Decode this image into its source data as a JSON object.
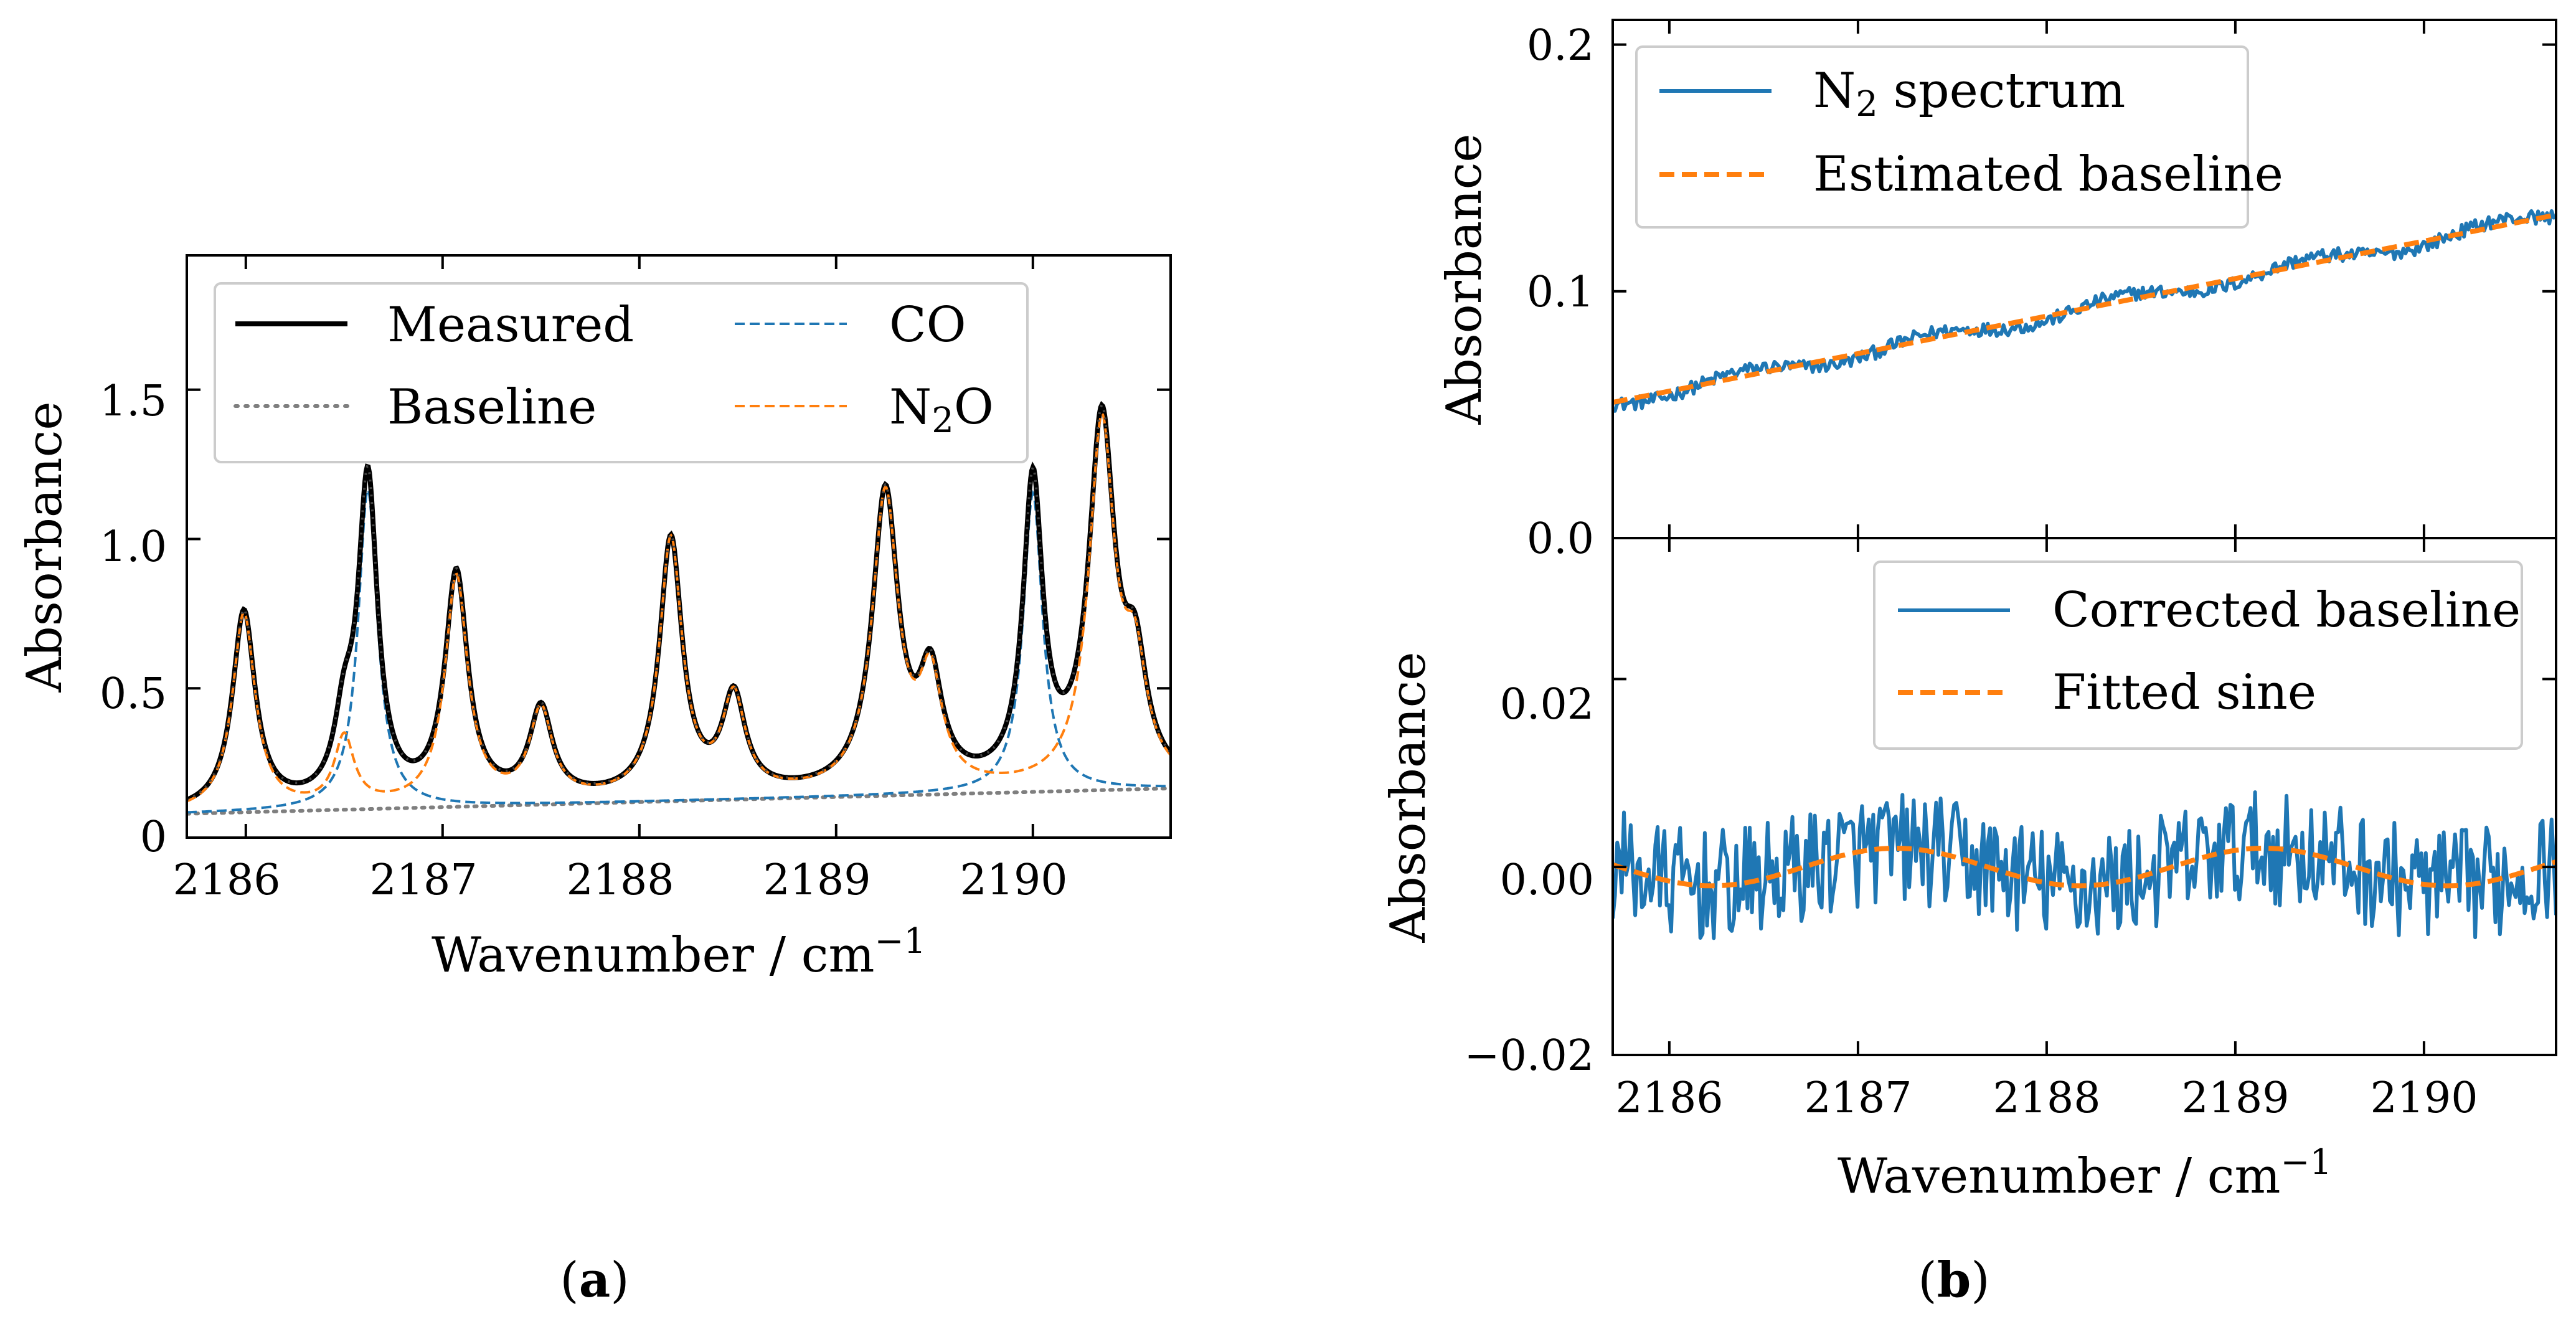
{
  "figure": {
    "caption_a_open": "(",
    "caption_a_letter": "a",
    "caption_a_close": ")",
    "caption_b_open": "(",
    "caption_b_letter": "b",
    "caption_b_close": ")",
    "colors": {
      "measured": "#000000",
      "baseline": "#7f7f7f",
      "co": "#1f77b4",
      "n2o": "#ff7f0e"
    }
  },
  "chart_data": [
    {
      "id": "a",
      "type": "line",
      "xlabel": "Wavenumber / cm",
      "xlabel_sup": "−1",
      "ylabel": "Absorbance",
      "xlim": [
        2185.7,
        2190.7
      ],
      "ylim": [
        0,
        1.95
      ],
      "xticks": [
        2186,
        2187,
        2188,
        2189,
        2190
      ],
      "xtick_labels": [
        "2186",
        "2187",
        "2188",
        "2189",
        "2190"
      ],
      "yticks": [
        0,
        0.5,
        1.0,
        1.5
      ],
      "ytick_labels": [
        "0",
        "0.5",
        "1.0",
        "1.5"
      ],
      "legend": {
        "placement": "top (two columns)",
        "measured": "Measured",
        "baseline": "Baseline",
        "co": "CO",
        "n2o_n": "N",
        "n2o_sub": "2",
        "n2o_o": "O"
      },
      "baseline": {
        "start": 0.08,
        "end": 0.165
      },
      "co_peaks": [
        {
          "center": 2186.62,
          "height": 1.07,
          "width": 0.06
        },
        {
          "center": 2190.0,
          "height": 1.0,
          "width": 0.06
        }
      ],
      "n2o_peaks": [
        {
          "center": 2185.99,
          "height": 0.66,
          "width": 0.07
        },
        {
          "center": 2186.5,
          "height": 0.23,
          "width": 0.06
        },
        {
          "center": 2187.07,
          "height": 0.76,
          "width": 0.07
        },
        {
          "center": 2187.5,
          "height": 0.3,
          "width": 0.07
        },
        {
          "center": 2188.16,
          "height": 0.86,
          "width": 0.07
        },
        {
          "center": 2188.48,
          "height": 0.32,
          "width": 0.07
        },
        {
          "center": 2189.25,
          "height": 0.99,
          "width": 0.08
        },
        {
          "center": 2189.48,
          "height": 0.35,
          "width": 0.07
        },
        {
          "center": 2190.35,
          "height": 1.2,
          "width": 0.08
        },
        {
          "center": 2190.52,
          "height": 0.35,
          "width": 0.07
        }
      ]
    },
    {
      "id": "b-top",
      "type": "line",
      "ylabel": "Absorbance",
      "xlim": [
        2185.7,
        2190.7
      ],
      "ylim": [
        0,
        0.21
      ],
      "yticks": [
        0.0,
        0.1,
        0.2
      ],
      "ytick_labels": [
        "0.0",
        "0.1",
        "0.2"
      ],
      "xticks": [
        2186,
        2187,
        2188,
        2189,
        2190
      ],
      "legend": {
        "placement": "top-left",
        "spectrum_n": "N",
        "spectrum_sub": "2",
        "spectrum_rest": " spectrum",
        "baseline": "Estimated baseline"
      },
      "estimated_baseline": {
        "x": [
          2185.7,
          2190.7
        ],
        "y": [
          0.055,
          0.131
        ]
      },
      "spectrum_noise_amplitude": 0.004
    },
    {
      "id": "b-bottom",
      "type": "line",
      "xlabel": "Wavenumber / cm",
      "xlabel_sup": "−1",
      "ylabel": "Absorbance",
      "xlim": [
        2185.7,
        2190.7
      ],
      "ylim": [
        -0.02,
        0.035
      ],
      "xticks": [
        2186,
        2187,
        2188,
        2189,
        2190
      ],
      "xtick_labels": [
        "2186",
        "2187",
        "2188",
        "2189",
        "2190"
      ],
      "yticks": [
        -0.02,
        0.0,
        0.02
      ],
      "ytick_labels": [
        "−0.02",
        "0.00",
        "0.02"
      ],
      "legend": {
        "placement": "top-right",
        "corrected": "Corrected baseline",
        "sine": "Fitted sine"
      },
      "fitted_sine": {
        "amplitude": 0.002,
        "period": 1.95,
        "peak_at": 2187.2
      },
      "noise_amplitude": 0.006
    }
  ]
}
